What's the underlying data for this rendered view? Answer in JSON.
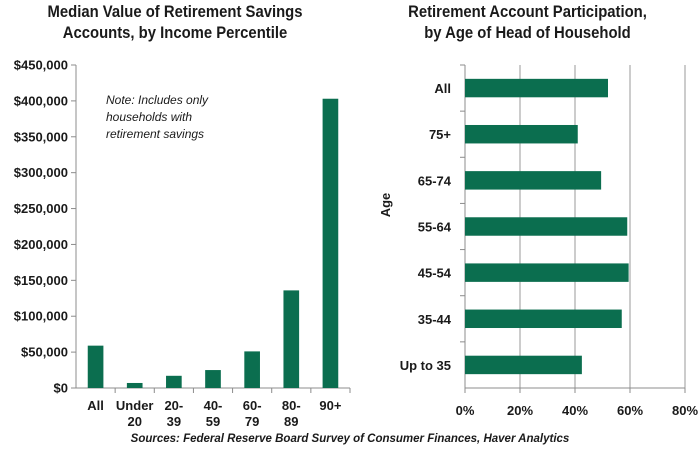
{
  "source_note": "Sources: Federal Reserve Board Survey of Consumer Finances, Haver Analytics",
  "chart_data": [
    {
      "type": "bar",
      "title_lines": [
        "Median Value of Retirement Savings",
        "Accounts, by Income Percentile"
      ],
      "categories": [
        [
          "All"
        ],
        [
          "Under",
          "20"
        ],
        [
          "20-",
          "39"
        ],
        [
          "40-",
          "59"
        ],
        [
          "60-",
          "79"
        ],
        [
          "80-",
          "89"
        ],
        [
          "90+"
        ]
      ],
      "values": [
        59000,
        7000,
        17000,
        25000,
        51000,
        136000,
        403000
      ],
      "ylim": [
        0,
        450000
      ],
      "yticks": [
        0,
        50000,
        100000,
        150000,
        200000,
        250000,
        300000,
        350000,
        400000,
        450000
      ],
      "ytick_labels": [
        "$0",
        "$50,000",
        "$100,000",
        "$150,000",
        "$200,000",
        "$250,000",
        "$300,000",
        "$350,000",
        "$400,000",
        "$450,000"
      ],
      "annotation": [
        "Note: Includes only",
        "households with",
        "retirement savings"
      ],
      "grid": false,
      "color": "#0b6e4f"
    },
    {
      "type": "bar",
      "orientation": "horizontal",
      "title_lines": [
        "Retirement Account Participation,",
        "by Age of Head of Household"
      ],
      "ylabel": "Age",
      "categories": [
        "All",
        "75+",
        "65-74",
        "55-64",
        "45-54",
        "35-44",
        "Up to 35"
      ],
      "values": [
        52,
        41,
        49.5,
        59,
        59.5,
        57,
        42.5
      ],
      "xlim": [
        0,
        80
      ],
      "xticks": [
        0,
        20,
        40,
        60,
        80
      ],
      "xtick_labels": [
        "0%",
        "20%",
        "40%",
        "60%",
        "80%"
      ],
      "grid": true,
      "color": "#0b6e4f"
    }
  ]
}
